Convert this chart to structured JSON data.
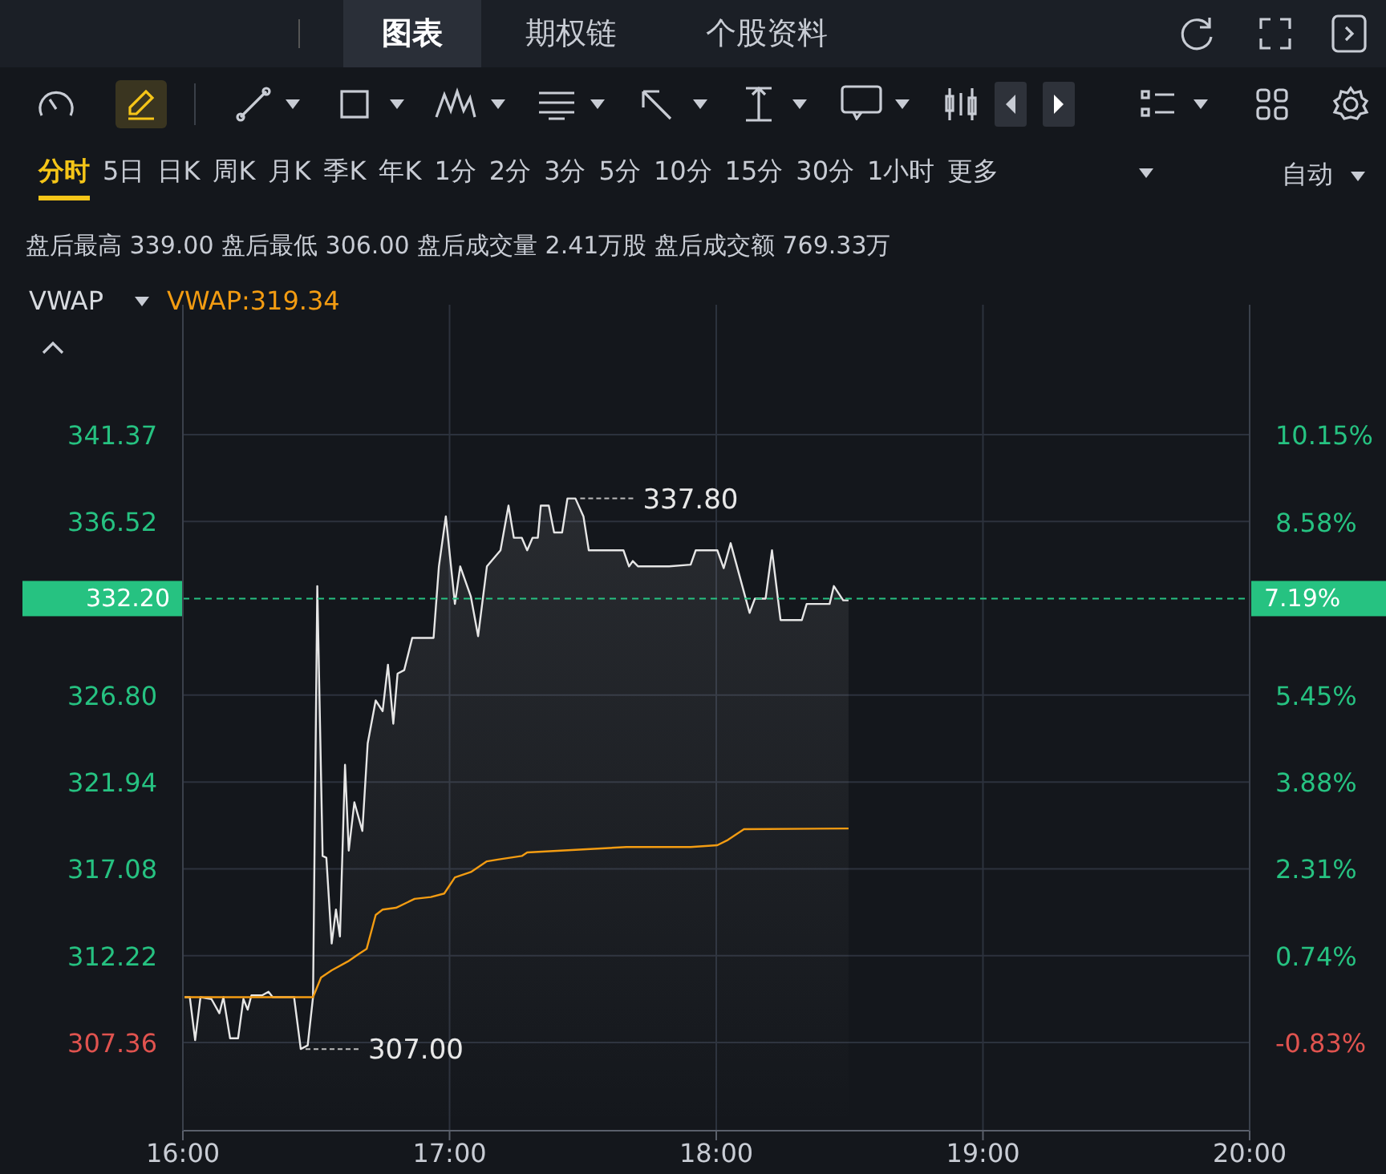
{
  "chart_data": {
    "type": "area",
    "subtitle": "盘后最高 339.00 盘后最低 306.00 盘后成交量 2.41万股 盘后成交额 769.33万",
    "annotations": [
      "图表",
      "期权链",
      "个股资料",
      "分时",
      "5日",
      "日K",
      "周K",
      "月K",
      "季K",
      "年K",
      "1分",
      "2分",
      "3分",
      "5分",
      "10分",
      "15分",
      "30分",
      "1小时",
      "更多",
      "自动",
      "VWAP",
      "7.19%",
      "VWAP:319.34",
      {
        "text": "337.80",
        "x": 17.472,
        "y": 337.8
      },
      {
        "text": "307.00",
        "x": 16.442,
        "y": 307.0
      }
    ],
    "xlim": [
      16,
      20
    ],
    "xticks": [
      {
        "value": 16,
        "label": "16:00"
      },
      {
        "value": 17,
        "label": "17:00"
      },
      {
        "value": 18,
        "label": "18:00"
      },
      {
        "value": 19,
        "label": "19:00"
      },
      {
        "value": 20,
        "label": "20:00"
      }
    ],
    "ylim": [
      302.43,
      348.64
    ],
    "yticks": [
      341.37,
      336.52,
      {
        "value": 326.8,
        "label": "326.80"
      },
      321.94,
      317.08,
      312.22,
      307.36
    ],
    "y2lim": [
      -2.42,
      12.5
    ],
    "y2ticks": [
      {
        "value": 10.15,
        "label": "10.15%"
      },
      {
        "value": 8.58,
        "label": "8.58%"
      },
      {
        "value": 5.45,
        "label": "5.45%"
      },
      {
        "value": 3.88,
        "label": "3.88%"
      },
      {
        "value": 2.31,
        "label": "2.31%"
      },
      {
        "value": 0.74,
        "label": "0.74%"
      },
      {
        "value": -0.83,
        "label": "-0.83%"
      }
    ],
    "grid": true,
    "ref_lines": [
      {
        "axis": "y",
        "value": 332.2,
        "label": "332.20",
        "color": "#26c281",
        "line_style": "dashed"
      }
    ],
    "series": [
      {
        "color": "#e6e6e6",
        "x": [
          16.006,
          16.026,
          16.046,
          16.066,
          16.107,
          16.137,
          16.152,
          16.177,
          16.207,
          16.227,
          16.243,
          16.257,
          16.297,
          16.321,
          16.337,
          16.417,
          16.442,
          16.468,
          16.488,
          16.504,
          16.524,
          16.538,
          16.558,
          16.574,
          16.589,
          16.608,
          16.622,
          16.643,
          16.673,
          16.693,
          16.723,
          16.749,
          16.769,
          16.789,
          16.805,
          16.83,
          16.86,
          16.94,
          16.96,
          16.986,
          17.02,
          17.04,
          17.08,
          17.107,
          17.14,
          17.191,
          17.221,
          17.241,
          17.271,
          17.291,
          17.311,
          17.331,
          17.342,
          17.372,
          17.392,
          17.422,
          17.442,
          17.472,
          17.502,
          17.522,
          17.652,
          17.673,
          17.687,
          17.707,
          17.823,
          17.904,
          17.923,
          18.004,
          18.028,
          18.054,
          18.125,
          18.145,
          18.185,
          18.209,
          18.241,
          18.321,
          18.339,
          18.425,
          18.441,
          18.476,
          18.496
        ],
        "values": [
          309.9,
          309.9,
          307.5,
          309.9,
          309.8,
          309.0,
          309.9,
          307.6,
          307.6,
          309.8,
          309.2,
          310.0,
          310.0,
          310.2,
          309.9,
          309.9,
          307.0,
          307.2,
          309.9,
          332.9,
          317.8,
          317.7,
          312.9,
          314.8,
          313.3,
          322.9,
          318.1,
          320.8,
          319.2,
          324.1,
          326.5,
          325.9,
          328.5,
          325.2,
          328.0,
          328.2,
          330.0,
          330.0,
          334.0,
          336.8,
          331.9,
          334.0,
          332.3,
          330.1,
          334.0,
          334.9,
          337.4,
          335.6,
          335.6,
          334.9,
          335.6,
          335.6,
          337.4,
          337.4,
          335.9,
          335.9,
          337.8,
          337.8,
          336.8,
          334.9,
          334.9,
          334.0,
          334.3,
          334.0,
          334.0,
          334.1,
          334.9,
          334.9,
          333.9,
          335.3,
          331.4,
          332.2,
          332.2,
          334.9,
          331.0,
          331.0,
          331.9,
          331.9,
          332.9,
          332.1,
          332.1
        ]
      },
      {
        "type": "line",
        "color": "#f39c12",
        "x": [
          16.006,
          16.488,
          16.518,
          16.558,
          16.619,
          16.658,
          16.689,
          16.723,
          16.749,
          16.799,
          16.869,
          16.93,
          16.98,
          17.02,
          17.08,
          17.14,
          17.181,
          17.271,
          17.291,
          17.542,
          17.663,
          17.904,
          18.004,
          18.044,
          18.104,
          18.496
        ],
        "values": [
          309.9,
          309.9,
          311.0,
          311.4,
          311.9,
          312.3,
          312.6,
          314.5,
          314.8,
          314.9,
          315.4,
          315.5,
          315.7,
          316.6,
          316.9,
          317.5,
          317.6,
          317.8,
          318.0,
          318.2,
          318.3,
          318.3,
          318.4,
          318.7,
          319.3,
          319.34
        ]
      }
    ]
  }
}
